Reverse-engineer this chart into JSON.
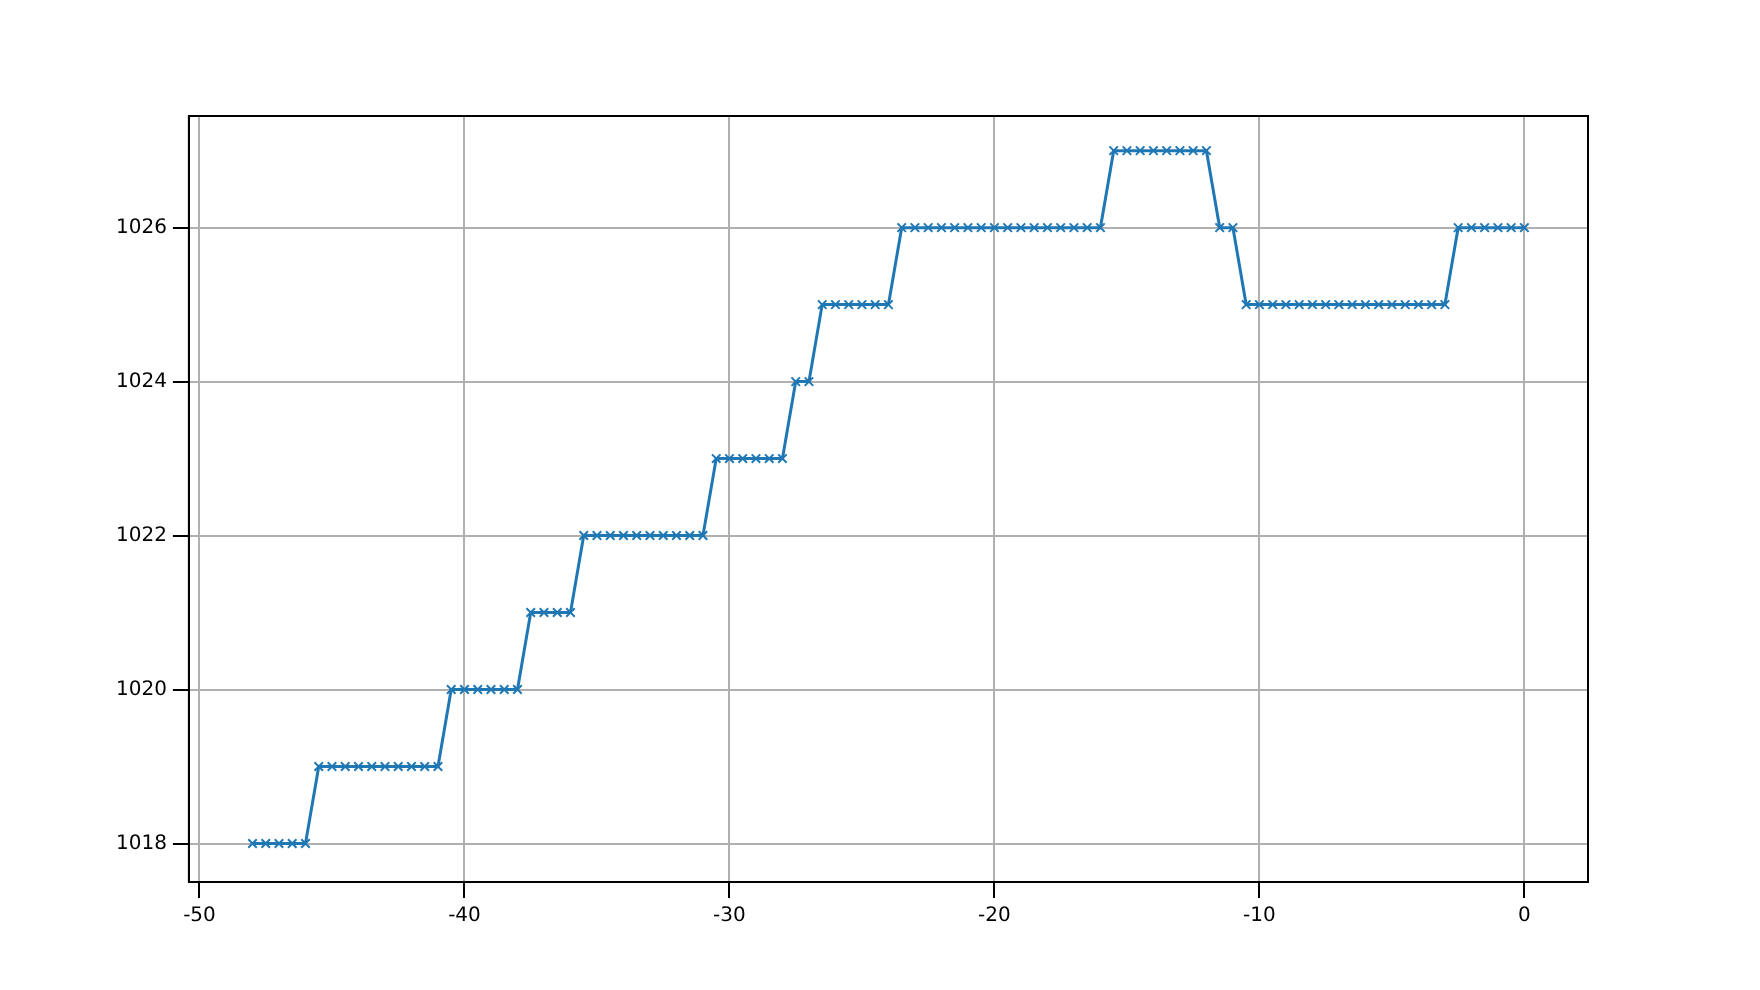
{
  "chart_data": {
    "type": "line",
    "x": [
      -48,
      -47.5,
      -47,
      -46.5,
      -46,
      -45.5,
      -45,
      -44.5,
      -44,
      -43.5,
      -43,
      -42.5,
      -42,
      -41.5,
      -41,
      -40.5,
      -40,
      -39.5,
      -39,
      -38.5,
      -38,
      -37.5,
      -37,
      -36.5,
      -36,
      -35.5,
      -35,
      -34.5,
      -34,
      -33.5,
      -33,
      -32.5,
      -32,
      -31.5,
      -31,
      -30.5,
      -30,
      -29.5,
      -29,
      -28.5,
      -28,
      -27.5,
      -27,
      -26.5,
      -26,
      -25.5,
      -25,
      -24.5,
      -24,
      -23.5,
      -23,
      -22.5,
      -22,
      -21.5,
      -21,
      -20.5,
      -20,
      -19.5,
      -19,
      -18.5,
      -18,
      -17.5,
      -17,
      -16.5,
      -16,
      -15.5,
      -15,
      -14.5,
      -14,
      -13.5,
      -13,
      -12.5,
      -12,
      -11.5,
      -11,
      -10.5,
      -10,
      -9.5,
      -9,
      -8.5,
      -8,
      -7.5,
      -7,
      -6.5,
      -6,
      -5.5,
      -5,
      -4.5,
      -4,
      -3.5,
      -3,
      -2.5,
      -2,
      -1.5,
      -1,
      -0.5,
      0
    ],
    "series": [
      {
        "color": "#1f77b4",
        "values": [
          1018,
          1018,
          1018,
          1018,
          1018,
          1019,
          1019,
          1019,
          1019,
          1019,
          1019,
          1019,
          1019,
          1019,
          1019,
          1020,
          1020,
          1020,
          1020,
          1020,
          1020,
          1021,
          1021,
          1021,
          1021,
          1022,
          1022,
          1022,
          1022,
          1022,
          1022,
          1022,
          1022,
          1022,
          1022,
          1023,
          1023,
          1023,
          1023,
          1023,
          1023,
          1024,
          1024,
          1025,
          1025,
          1025,
          1025,
          1025,
          1025,
          1026,
          1026,
          1026,
          1026,
          1026,
          1026,
          1026,
          1026,
          1026,
          1026,
          1026,
          1026,
          1026,
          1026,
          1026,
          1026,
          1027,
          1027,
          1027,
          1027,
          1027,
          1027,
          1027,
          1027,
          1026,
          1026,
          1025,
          1025,
          1025,
          1025,
          1025,
          1025,
          1025,
          1025,
          1025,
          1025,
          1025,
          1025,
          1025,
          1025,
          1025,
          1025,
          1026,
          1026,
          1026,
          1026,
          1026,
          1026
        ]
      }
    ],
    "xlim": [
      -50.4,
      2.4
    ],
    "xticks": [
      -50,
      -40,
      -30,
      -20,
      -10,
      0
    ],
    "ylim": [
      1017.5,
      1027.45
    ],
    "yticks": [
      1018,
      1020,
      1022,
      1024,
      1026
    ],
    "grid": true,
    "marker": "cross",
    "line_style": "solid"
  }
}
